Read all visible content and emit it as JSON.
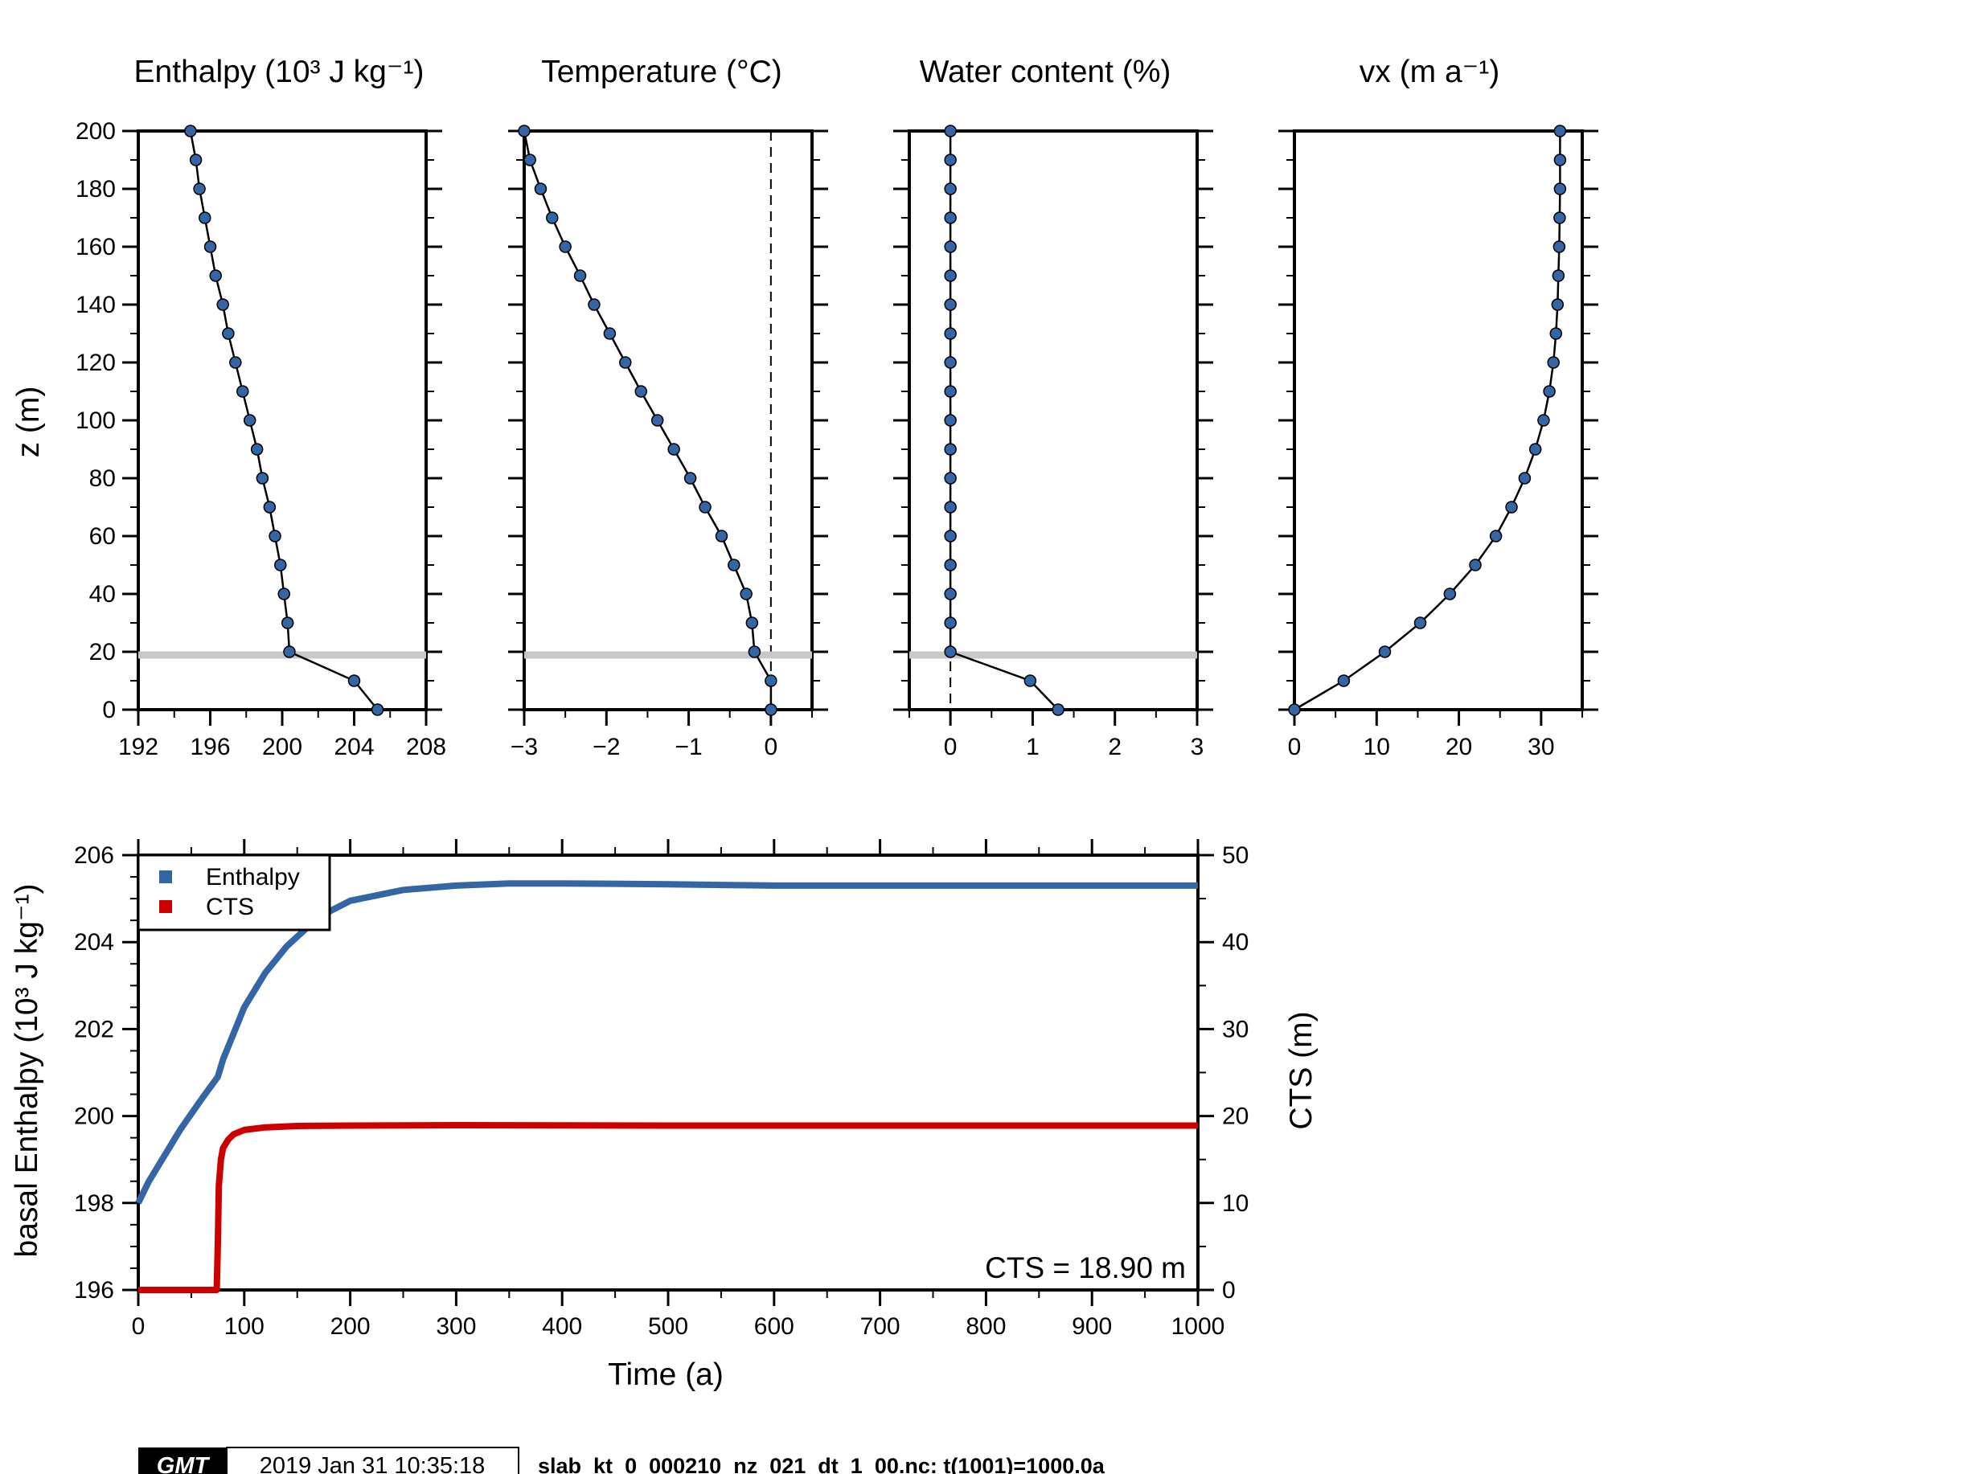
{
  "colors": {
    "marker": "#3465a4",
    "line": "#000000",
    "cts_band": "#c8c8c8",
    "enthalpy_series": "#3465a4",
    "cts_series": "#cc0000"
  },
  "chart_data": [
    {
      "type": "line",
      "title": "Enthalpy (10³ J kg⁻¹)",
      "ylabel": "z (m)",
      "xlim": [
        192,
        208
      ],
      "ylim": [
        0,
        200
      ],
      "xticks": [
        "192",
        "196",
        "200",
        "204",
        "208"
      ],
      "yticks": [
        "0",
        "20",
        "40",
        "60",
        "80",
        "100",
        "120",
        "140",
        "160",
        "180",
        "200"
      ],
      "cts_line": 18.9,
      "z": [
        0,
        10,
        20,
        30,
        40,
        50,
        60,
        70,
        80,
        90,
        100,
        110,
        120,
        130,
        140,
        150,
        160,
        170,
        180,
        190,
        200
      ],
      "x": [
        205.3,
        204.0,
        200.4,
        200.3,
        200.1,
        199.9,
        199.6,
        199.3,
        198.9,
        198.6,
        198.2,
        197.8,
        197.4,
        197.0,
        196.7,
        196.3,
        196.0,
        195.7,
        195.4,
        195.2,
        194.9
      ]
    },
    {
      "type": "line",
      "title": "Temperature (°C)",
      "xlim": [
        -3,
        0.5
      ],
      "ylim": [
        0,
        200
      ],
      "xticks": [
        "−3",
        "−2",
        "−1",
        "0"
      ],
      "dashed_zero_line": true,
      "cts_line": 18.9,
      "z": [
        0,
        10,
        20,
        30,
        40,
        50,
        60,
        70,
        80,
        90,
        100,
        110,
        120,
        130,
        140,
        150,
        160,
        170,
        180,
        190,
        200
      ],
      "x": [
        0.0,
        0.0,
        -0.2,
        -0.23,
        -0.3,
        -0.45,
        -0.6,
        -0.8,
        -0.98,
        -1.18,
        -1.38,
        -1.58,
        -1.77,
        -1.96,
        -2.15,
        -2.32,
        -2.5,
        -2.66,
        -2.8,
        -2.93,
        -3.0
      ]
    },
    {
      "type": "line",
      "title": "Water content (%)",
      "xlim": [
        -0.5,
        3
      ],
      "ylim": [
        0,
        200
      ],
      "xticks": [
        "0",
        "1",
        "2",
        "3"
      ],
      "dashed_zero_line": true,
      "cts_line": 18.9,
      "z": [
        0,
        10,
        20,
        30,
        40,
        50,
        60,
        70,
        80,
        90,
        100,
        110,
        120,
        130,
        140,
        150,
        160,
        170,
        180,
        190,
        200
      ],
      "x": [
        1.31,
        0.97,
        0,
        0,
        0,
        0,
        0,
        0,
        0,
        0,
        0,
        0,
        0,
        0,
        0,
        0,
        0,
        0,
        0,
        0,
        0
      ]
    },
    {
      "type": "line",
      "title": "vx (m a⁻¹)",
      "xlim": [
        0,
        35
      ],
      "ylim": [
        0,
        200
      ],
      "xticks": [
        "0",
        "10",
        "20",
        "30"
      ],
      "z": [
        0,
        10,
        20,
        30,
        40,
        50,
        60,
        70,
        80,
        90,
        100,
        110,
        120,
        130,
        140,
        150,
        160,
        170,
        180,
        190,
        200
      ],
      "x": [
        0,
        6.0,
        11.0,
        15.3,
        18.9,
        22.0,
        24.5,
        26.4,
        28.0,
        29.3,
        30.3,
        31.0,
        31.5,
        31.8,
        32.0,
        32.1,
        32.2,
        32.25,
        32.3,
        32.3,
        32.3
      ]
    },
    {
      "type": "line",
      "xlabel": "Time (a)",
      "ylabel": "basal Enthalpy (10³ J kg⁻¹)",
      "ylabel2": "CTS (m)",
      "xlim": [
        0,
        1000
      ],
      "ylim": [
        196,
        206
      ],
      "ylim2": [
        0,
        50
      ],
      "xticks": [
        "0",
        "100",
        "200",
        "300",
        "400",
        "500",
        "600",
        "700",
        "800",
        "900",
        "1000"
      ],
      "yticks": [
        "196",
        "198",
        "200",
        "202",
        "204",
        "206"
      ],
      "yticks2": [
        "0",
        "10",
        "20",
        "30",
        "40",
        "50"
      ],
      "legend_position": "top-left",
      "annotation": "CTS = 18.90 m",
      "series": [
        {
          "name": "Enthalpy",
          "x": [
            0,
            10,
            20,
            30,
            40,
            50,
            60,
            75,
            80,
            90,
            100,
            120,
            140,
            160,
            180,
            200,
            250,
            300,
            350,
            400,
            500,
            600,
            700,
            800,
            900,
            1000
          ],
          "values": [
            198.0,
            198.5,
            198.9,
            199.3,
            199.7,
            200.05,
            200.4,
            200.9,
            201.3,
            201.9,
            202.5,
            203.3,
            203.9,
            204.35,
            204.7,
            204.95,
            205.2,
            205.3,
            205.35,
            205.35,
            205.33,
            205.3,
            205.3,
            205.3,
            205.3,
            205.3
          ]
        },
        {
          "name": "CTS",
          "x": [
            0,
            73,
            74,
            75,
            76,
            78,
            80,
            85,
            90,
            100,
            120,
            150,
            200,
            300,
            400,
            500,
            600,
            700,
            800,
            900,
            1000
          ],
          "values": [
            0,
            0,
            0,
            5,
            12,
            15,
            16.3,
            17.3,
            17.9,
            18.4,
            18.7,
            18.85,
            18.9,
            18.95,
            18.92,
            18.9,
            18.9,
            18.9,
            18.9,
            18.9,
            18.9
          ]
        }
      ]
    }
  ],
  "footer": {
    "logo": "GMT",
    "timestamp": "2019 Jan 31 10:35:18",
    "filename": "slab_kt_0_000210_nz_021_dt_1_00.nc: t(1001)=1000.0a"
  }
}
